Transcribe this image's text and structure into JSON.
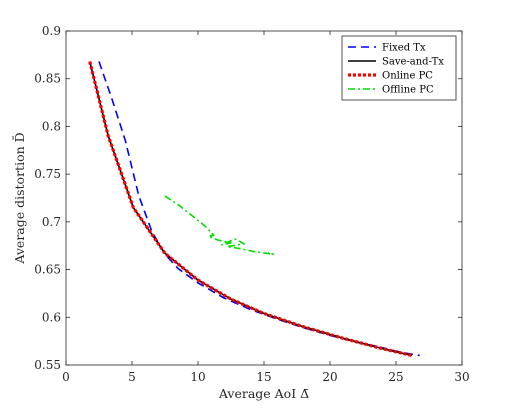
{
  "chart_data": {
    "type": "line",
    "xlabel": "Average AoI Δ̄",
    "ylabel": "Average distortion D̄",
    "xlim": [
      0,
      30
    ],
    "ylim": [
      0.55,
      0.9
    ],
    "xticks": [
      0,
      5,
      10,
      15,
      20,
      25,
      30
    ],
    "yticks": [
      0.55,
      0.6,
      0.65,
      0.7,
      0.75,
      0.8,
      0.85,
      0.9
    ],
    "xtick_labels": [
      "0",
      "5",
      "10",
      "15",
      "20",
      "25",
      "30"
    ],
    "ytick_labels": [
      "0.55",
      "0.6",
      "0.65",
      "0.7",
      "0.75",
      "0.8",
      "0.85",
      "0.9"
    ],
    "grid": false,
    "legend_position": "top-right",
    "series": [
      {
        "name": "Fixed Tx",
        "color": "#0000ff",
        "style": "dashed",
        "x": [
          2.5,
          3.5,
          4.5,
          5.5,
          6.5,
          7.5,
          8.5,
          10,
          12,
          14,
          16,
          18,
          20,
          22,
          24,
          25.5,
          26.8
        ],
        "y": [
          0.868,
          0.828,
          0.785,
          0.728,
          0.69,
          0.666,
          0.651,
          0.636,
          0.62,
          0.608,
          0.598,
          0.589,
          0.581,
          0.574,
          0.568,
          0.563,
          0.56
        ]
      },
      {
        "name": "Save-and-Tx",
        "color": "#000000",
        "style": "solid",
        "x": [
          1.8,
          3.2,
          5.1,
          7.5,
          10,
          12.5,
          15,
          18,
          21,
          24,
          26.2
        ],
        "y": [
          0.868,
          0.79,
          0.715,
          0.667,
          0.639,
          0.619,
          0.604,
          0.59,
          0.578,
          0.567,
          0.56
        ]
      },
      {
        "name": "Online PC",
        "color": "#ff0000",
        "style": "dotted",
        "x": [
          1.8,
          3.2,
          5.1,
          7.5,
          10,
          12.5,
          15,
          18,
          21,
          24,
          26.2
        ],
        "y": [
          0.868,
          0.79,
          0.715,
          0.667,
          0.639,
          0.619,
          0.604,
          0.59,
          0.578,
          0.567,
          0.56
        ]
      },
      {
        "name": "Offline PC",
        "color": "#00dd00",
        "style": "dashdot",
        "x": [
          7.5,
          8.5,
          9.5,
          10.5,
          11.2,
          10.8,
          11.5,
          12.5,
          11.8,
          12.8,
          13.5,
          12.2,
          13.2,
          14.2,
          15.2,
          15.7,
          15.3
        ],
        "y": [
          0.727,
          0.718,
          0.707,
          0.696,
          0.686,
          0.685,
          0.681,
          0.678,
          0.676,
          0.682,
          0.677,
          0.674,
          0.672,
          0.669,
          0.667,
          0.666,
          0.668
        ]
      }
    ]
  }
}
